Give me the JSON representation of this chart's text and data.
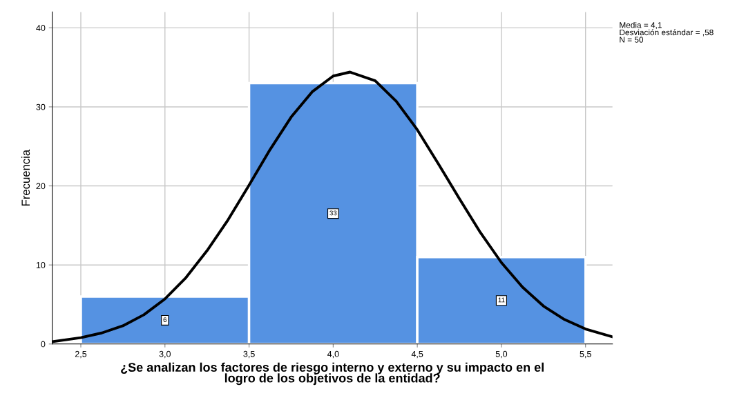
{
  "chart_data": {
    "type": "histogram",
    "xlabel": "¿Se analizan los factores de riesgo interno y externo y su impacto en el\nlogro de los objetivos de la entidad?",
    "ylabel": "Frecuencia",
    "bins": [
      2.5,
      3.5,
      4.5,
      5.5
    ],
    "values": [
      6,
      33,
      11
    ],
    "color": "#5592e2",
    "value_labels": [
      "6",
      "33",
      "11"
    ],
    "series": [
      {
        "type": "line",
        "color": "#000000",
        "x": [
          2.33,
          2.5,
          2.625,
          2.75,
          2.875,
          3.0,
          3.125,
          3.25,
          3.375,
          3.5,
          3.625,
          3.75,
          3.875,
          4.0,
          4.1,
          4.25,
          4.375,
          4.5,
          4.625,
          4.75,
          4.875,
          5.0,
          5.125,
          5.25,
          5.375,
          5.5,
          5.66
        ],
        "values": [
          0.3,
          0.8,
          1.4,
          2.3,
          3.7,
          5.7,
          8.4,
          11.8,
          15.7,
          20.1,
          24.6,
          28.7,
          31.9,
          33.9,
          34.4,
          33.3,
          30.7,
          27.1,
          22.8,
          18.4,
          14.1,
          10.3,
          7.2,
          4.8,
          3.1,
          1.9,
          0.9
        ]
      }
    ],
    "xlim": [
      2.33,
      5.66
    ],
    "ylim": [
      0,
      42
    ],
    "xticks": [
      {
        "value": 2.5,
        "label": "2,5"
      },
      {
        "value": 3.0,
        "label": "3,0"
      },
      {
        "value": 3.5,
        "label": "3,5"
      },
      {
        "value": 4.0,
        "label": "4,0"
      },
      {
        "value": 4.5,
        "label": "4,5"
      },
      {
        "value": 5.0,
        "label": "5,0"
      },
      {
        "value": 5.5,
        "label": "5,5"
      }
    ],
    "yticks": [
      0,
      10,
      20,
      30,
      40
    ],
    "grid": true,
    "legend": false,
    "annotations": [
      "Media = 4,1\nDesviación estándar = ,58\nN = 50"
    ]
  }
}
